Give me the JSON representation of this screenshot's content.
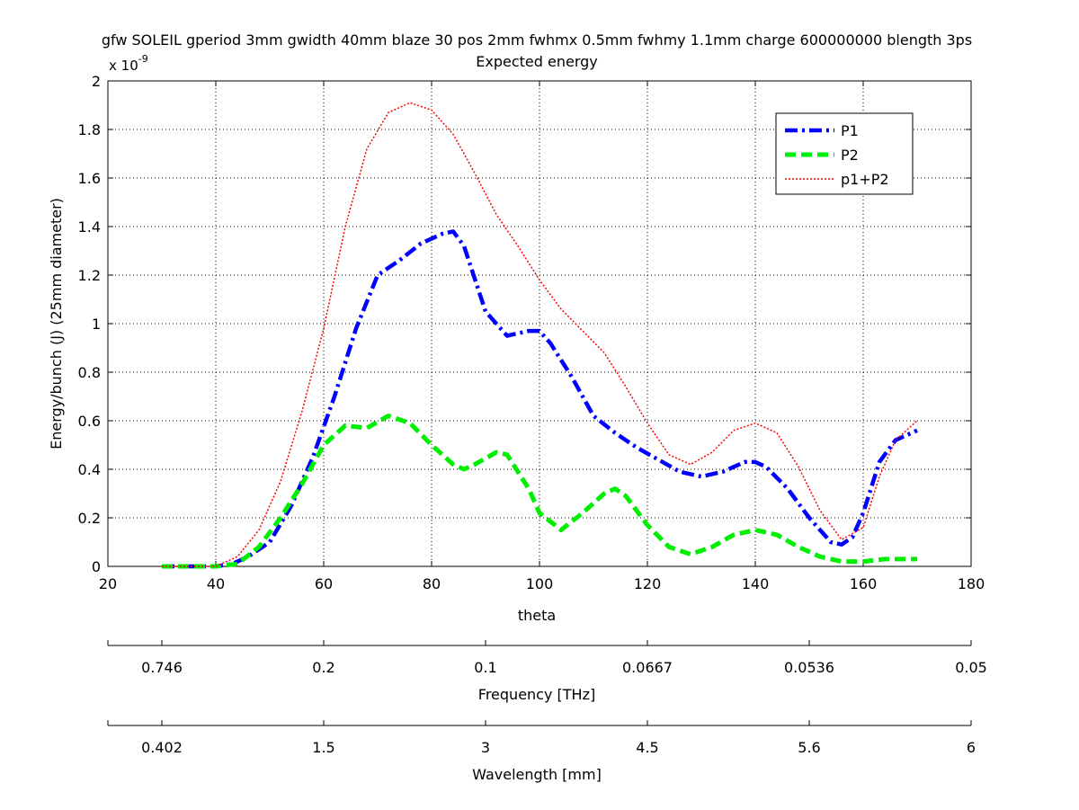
{
  "chart_data": {
    "type": "line",
    "title": "gfw SOLEIL gperiod 3mm gwidth 40mm blaze 30 pos 2mm fwhmx 0.5mm fwhmy 1.1mm charge 600000000 blength 3ps",
    "subtitle": "Expected energy",
    "xlabel": "theta",
    "ylabel": "Energy/bunch (J) (25mm diameter)",
    "y_multiplier_base": "x 10",
    "y_multiplier_exp": "-9",
    "xlim": [
      20,
      180
    ],
    "ylim": [
      0,
      2
    ],
    "xticks": [
      20,
      40,
      60,
      80,
      100,
      120,
      140,
      160,
      180
    ],
    "yticks": [
      0,
      0.2,
      0.4,
      0.6,
      0.8,
      1,
      1.2,
      1.4,
      1.6,
      1.8,
      2
    ],
    "ytick_labels": [
      "0",
      "0.2",
      "0.4",
      "0.6",
      "0.8",
      "1",
      "1.2",
      "1.4",
      "1.6",
      "1.8",
      "2"
    ],
    "grid": true,
    "legend_position": "top-right",
    "series": [
      {
        "name": "P1",
        "color": "#0000ff",
        "style": "dashdot",
        "x": [
          30,
          40,
          43,
          46,
          50,
          54,
          58,
          62,
          66,
          70,
          74,
          78,
          82,
          84,
          86,
          90,
          94,
          98,
          100,
          102,
          106,
          110,
          114,
          118,
          122,
          126,
          130,
          134,
          138,
          140,
          142,
          146,
          150,
          154,
          156,
          158,
          160,
          163,
          166,
          170
        ],
        "y": [
          0,
          0,
          0.01,
          0.04,
          0.1,
          0.25,
          0.45,
          0.7,
          0.98,
          1.2,
          1.26,
          1.33,
          1.37,
          1.38,
          1.32,
          1.05,
          0.95,
          0.97,
          0.97,
          0.92,
          0.78,
          0.62,
          0.55,
          0.49,
          0.44,
          0.39,
          0.37,
          0.39,
          0.43,
          0.43,
          0.41,
          0.32,
          0.2,
          0.1,
          0.09,
          0.12,
          0.22,
          0.43,
          0.52,
          0.56
        ]
      },
      {
        "name": "P2",
        "color": "#00ee00",
        "style": "dashed",
        "x": [
          30,
          40,
          44,
          48,
          52,
          56,
          60,
          64,
          68,
          72,
          76,
          80,
          84,
          86,
          88,
          92,
          94,
          98,
          100,
          104,
          108,
          112,
          114,
          116,
          120,
          124,
          128,
          132,
          136,
          140,
          144,
          148,
          152,
          156,
          160,
          164,
          168,
          170
        ],
        "y": [
          0,
          0,
          0.01,
          0.08,
          0.2,
          0.34,
          0.5,
          0.58,
          0.57,
          0.62,
          0.59,
          0.5,
          0.42,
          0.4,
          0.42,
          0.47,
          0.46,
          0.32,
          0.22,
          0.15,
          0.22,
          0.3,
          0.32,
          0.29,
          0.17,
          0.08,
          0.05,
          0.08,
          0.13,
          0.15,
          0.13,
          0.08,
          0.04,
          0.02,
          0.02,
          0.03,
          0.03,
          0.03
        ]
      },
      {
        "name": "p1+P2",
        "color": "#ff0000",
        "style": "dotted",
        "x": [
          30,
          40,
          44,
          48,
          52,
          56,
          60,
          64,
          68,
          72,
          76,
          80,
          84,
          88,
          92,
          96,
          100,
          104,
          108,
          112,
          116,
          120,
          124,
          128,
          132,
          136,
          140,
          144,
          148,
          152,
          156,
          160,
          163,
          166,
          170
        ],
        "y": [
          0,
          0,
          0.04,
          0.15,
          0.35,
          0.64,
          0.98,
          1.4,
          1.72,
          1.87,
          1.91,
          1.88,
          1.78,
          1.62,
          1.45,
          1.32,
          1.18,
          1.06,
          0.97,
          0.88,
          0.74,
          0.59,
          0.46,
          0.42,
          0.47,
          0.56,
          0.59,
          0.55,
          0.41,
          0.23,
          0.11,
          0.16,
          0.37,
          0.52,
          0.6
        ]
      }
    ],
    "secondary_axes": [
      {
        "label": "Frequency [THz]",
        "tick_labels": [
          "0.746",
          "0.2",
          "0.1",
          "0.0667",
          "0.0536",
          "0.05"
        ],
        "tick_theta": [
          30,
          60,
          90,
          120,
          150,
          180
        ]
      },
      {
        "label": "Wavelength [mm]",
        "tick_labels": [
          "0.402",
          "1.5",
          "3",
          "4.5",
          "5.6",
          "6"
        ],
        "tick_theta": [
          30,
          60,
          90,
          120,
          150,
          180
        ]
      }
    ]
  }
}
